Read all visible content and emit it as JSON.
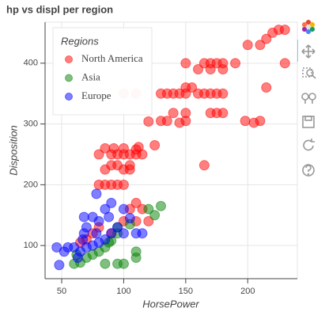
{
  "chart_data": {
    "type": "scatter",
    "title": "hp vs displ per region",
    "x_label": "HorsePower",
    "y_label": "Disposition",
    "legend_title": "Regions",
    "legend_location": "top_left",
    "grid": true,
    "xlim": [
      36.6,
      240
    ],
    "ylim": [
      45.5,
      467.5
    ],
    "xticks": [
      50,
      100,
      150,
      200
    ],
    "yticks": [
      100,
      200,
      300,
      400
    ],
    "series": [
      {
        "name": "North America",
        "color": "#ff0000",
        "x": [
          225,
          230,
          220,
          215,
          210,
          200,
          230,
          190,
          180,
          175,
          170,
          165,
          180,
          170,
          150,
          160,
          155,
          150,
          140,
          145,
          150,
          160,
          165,
          170,
          175,
          180,
          130,
          135,
          110,
          100,
          215,
          150,
          140,
          130,
          135,
          150,
          145,
          120,
          210,
          205,
          198,
          170,
          175,
          180,
          165,
          125,
          115,
          110,
          105,
          100,
          95,
          90,
          85,
          80,
          92,
          100,
          105,
          95,
          90,
          85,
          100,
          105,
          95,
          90,
          85,
          80,
          100,
          110,
          115,
          105,
          100,
          110,
          120,
          90,
          80,
          75,
          70,
          65,
          110,
          112
        ],
        "y": [
          455,
          455,
          450,
          440,
          430,
          430,
          400,
          400,
          400,
          400,
          400,
          400,
          390,
          390,
          400,
          390,
          360,
          360,
          350,
          350,
          350,
          350,
          350,
          350,
          350,
          350,
          350,
          350,
          350,
          350,
          360,
          318,
          318,
          305,
          305,
          305,
          302,
          304,
          305,
          302,
          305,
          318,
          318,
          318,
          232,
          265,
          250,
          258,
          250,
          250,
          250,
          250,
          260,
          250,
          260,
          260,
          232,
          232,
          232,
          225,
          225,
          225,
          200,
          200,
          200,
          200,
          200,
          170,
          160,
          160,
          140,
          140,
          140,
          120,
          130,
          120,
          110,
          105,
          250,
          262
        ]
      },
      {
        "name": "Asia",
        "color": "#008000",
        "x": [
          60,
          65,
          70,
          75,
          80,
          85,
          90,
          95,
          100,
          95,
          85,
          110,
          110,
          120,
          125,
          130,
          105,
          95,
          88,
          62
        ],
        "y": [
          70,
          72,
          80,
          85,
          90,
          97,
          108,
          120,
          70,
          70,
          70,
          80,
          90,
          160,
          150,
          165,
          135,
          130,
          105,
          85
        ]
      },
      {
        "name": "Europe",
        "color": "#0000ff",
        "x": [
          46,
          48,
          52,
          55,
          60,
          65,
          67,
          68,
          70,
          75,
          78,
          80,
          85,
          90,
          95,
          100,
          105,
          110,
          115,
          88,
          80,
          68,
          75,
          78,
          85,
          90,
          70,
          63,
          100
        ],
        "y": [
          97,
          68,
          90,
          97,
          97,
          90,
          110,
          120,
          97,
          100,
          120,
          105,
          110,
          120,
          130,
          120,
          145,
          120,
          120,
          147,
          140,
          147,
          147,
          185,
          160,
          170,
          130,
          80,
          160
        ]
      }
    ]
  }
}
